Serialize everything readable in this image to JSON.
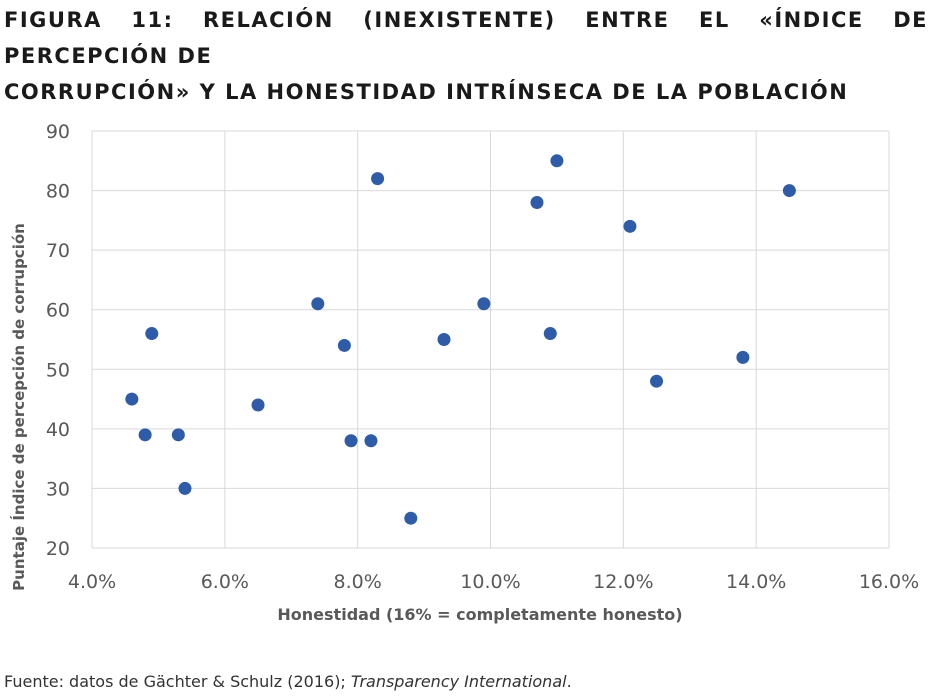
{
  "title": {
    "line1": "FIGURA 11: RELACIÓN (INEXISTENTE) ENTRE EL «ÍNDICE DE PERCEPCIÓN DE",
    "line2": "CORRUPCIÓN» Y LA HONESTIDAD INTRÍNSECA DE LA POBLACIÓN"
  },
  "source": {
    "prefix": "Fuente: datos de Gächter & Schulz (2016); ",
    "italic": "Transparency International",
    "suffix": "."
  },
  "colors": {
    "points": "#2e5ca8",
    "grid": "#d9d9d9",
    "axis_text": "#595959"
  },
  "chart_data": {
    "type": "scatter",
    "xlabel": "Honestidad (16% = completamente honesto)",
    "ylabel": "Puntaje Índice de percepción de corrupción",
    "xlim": [
      4.0,
      16.0
    ],
    "ylim": [
      20,
      90
    ],
    "x_ticks": [
      "4.0%",
      "6.0%",
      "8.0%",
      "10.0%",
      "12.0%",
      "14.0%",
      "16.0%"
    ],
    "y_ticks": [
      "20",
      "30",
      "40",
      "50",
      "60",
      "70",
      "80",
      "90"
    ],
    "grid": true,
    "series": [
      {
        "points": [
          {
            "x": 4.6,
            "y": 45
          },
          {
            "x": 4.8,
            "y": 39
          },
          {
            "x": 4.9,
            "y": 56
          },
          {
            "x": 5.3,
            "y": 39
          },
          {
            "x": 5.4,
            "y": 30
          },
          {
            "x": 6.5,
            "y": 44
          },
          {
            "x": 7.4,
            "y": 61
          },
          {
            "x": 7.8,
            "y": 54
          },
          {
            "x": 7.9,
            "y": 38
          },
          {
            "x": 8.2,
            "y": 38
          },
          {
            "x": 8.3,
            "y": 82
          },
          {
            "x": 8.8,
            "y": 25
          },
          {
            "x": 9.3,
            "y": 55
          },
          {
            "x": 9.9,
            "y": 61
          },
          {
            "x": 10.7,
            "y": 78
          },
          {
            "x": 10.9,
            "y": 56
          },
          {
            "x": 11.0,
            "y": 85
          },
          {
            "x": 12.1,
            "y": 74
          },
          {
            "x": 12.5,
            "y": 48
          },
          {
            "x": 13.8,
            "y": 52
          },
          {
            "x": 14.5,
            "y": 80
          }
        ]
      }
    ]
  }
}
